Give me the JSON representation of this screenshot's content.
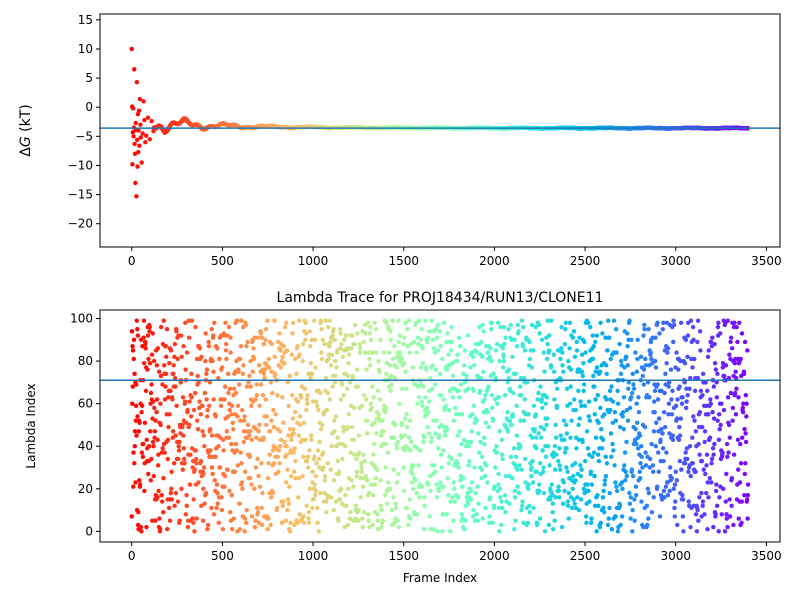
{
  "chart_data": [
    {
      "type": "scatter",
      "title": "",
      "xlabel": "",
      "ylabel": "ΔG (kT)",
      "ylabel_main": "Δ",
      "ylabel_var": "G",
      "ylabel_unit": " (kT)",
      "xlim": [
        -175,
        3575
      ],
      "ylim": [
        -24,
        16
      ],
      "xticks": [
        0,
        500,
        1000,
        1500,
        2000,
        2500,
        3000,
        3500
      ],
      "xtick_labels": [
        "0",
        "500",
        "1000",
        "1500",
        "2000",
        "2500",
        "3000",
        "3500"
      ],
      "yticks": [
        -20,
        -15,
        -10,
        -5,
        0,
        5,
        10,
        15
      ],
      "ytick_labels": [
        "−20",
        "−15",
        "−10",
        "−5",
        "0",
        "5",
        "10",
        "15"
      ],
      "n_frames": 3400,
      "colormap": "rainbow",
      "early_points": [
        {
          "x": 0,
          "y": 10.0
        },
        {
          "x": 2,
          "y": 0.1
        },
        {
          "x": 4,
          "y": -9.8
        },
        {
          "x": 6,
          "y": -4.3
        },
        {
          "x": 8,
          "y": -0.2
        },
        {
          "x": 10,
          "y": -5.0
        },
        {
          "x": 12,
          "y": -3.5
        },
        {
          "x": 14,
          "y": 6.5
        },
        {
          "x": 16,
          "y": -6.3
        },
        {
          "x": 18,
          "y": -8.0
        },
        {
          "x": 20,
          "y": -13.0
        },
        {
          "x": 22,
          "y": -2.7
        },
        {
          "x": 24,
          "y": -3.9
        },
        {
          "x": 26,
          "y": -15.3
        },
        {
          "x": 28,
          "y": 4.3
        },
        {
          "x": 30,
          "y": -5.6
        },
        {
          "x": 32,
          "y": -10.2
        },
        {
          "x": 34,
          "y": -1.2
        },
        {
          "x": 36,
          "y": -7.7
        },
        {
          "x": 38,
          "y": -4.0
        },
        {
          "x": 40,
          "y": -0.6
        },
        {
          "x": 42,
          "y": -6.6
        },
        {
          "x": 45,
          "y": 1.4
        },
        {
          "x": 48,
          "y": -3.0
        },
        {
          "x": 50,
          "y": -5.2
        },
        {
          "x": 55,
          "y": -9.5
        },
        {
          "x": 60,
          "y": -4.5
        },
        {
          "x": 65,
          "y": 1.0
        },
        {
          "x": 70,
          "y": -2.2
        },
        {
          "x": 75,
          "y": -6.0
        },
        {
          "x": 80,
          "y": -4.9
        },
        {
          "x": 90,
          "y": -1.8
        },
        {
          "x": 100,
          "y": -5.5
        },
        {
          "x": 110,
          "y": -2.4
        },
        {
          "x": 120,
          "y": -4.1
        }
      ],
      "hline": -3.6,
      "hline_color": "#1f77b4"
    },
    {
      "type": "scatter",
      "title": "Lambda Trace for PROJ18434/RUN13/CLONE11",
      "xlabel": "Frame Index",
      "ylabel": "Lambda Index",
      "xlim": [
        -175,
        3575
      ],
      "ylim": [
        -5,
        104
      ],
      "xticks": [
        0,
        500,
        1000,
        1500,
        2000,
        2500,
        3000,
        3500
      ],
      "xtick_labels": [
        "0",
        "500",
        "1000",
        "1500",
        "2000",
        "2500",
        "3000",
        "3500"
      ],
      "yticks": [
        0,
        20,
        40,
        60,
        80,
        100
      ],
      "ytick_labels": [
        "0",
        "20",
        "40",
        "60",
        "80",
        "100"
      ],
      "n_frames": 3400,
      "lambda_range": [
        0,
        99
      ],
      "colormap": "rainbow",
      "hline": 71,
      "hline_color": "#1f77b4"
    }
  ]
}
